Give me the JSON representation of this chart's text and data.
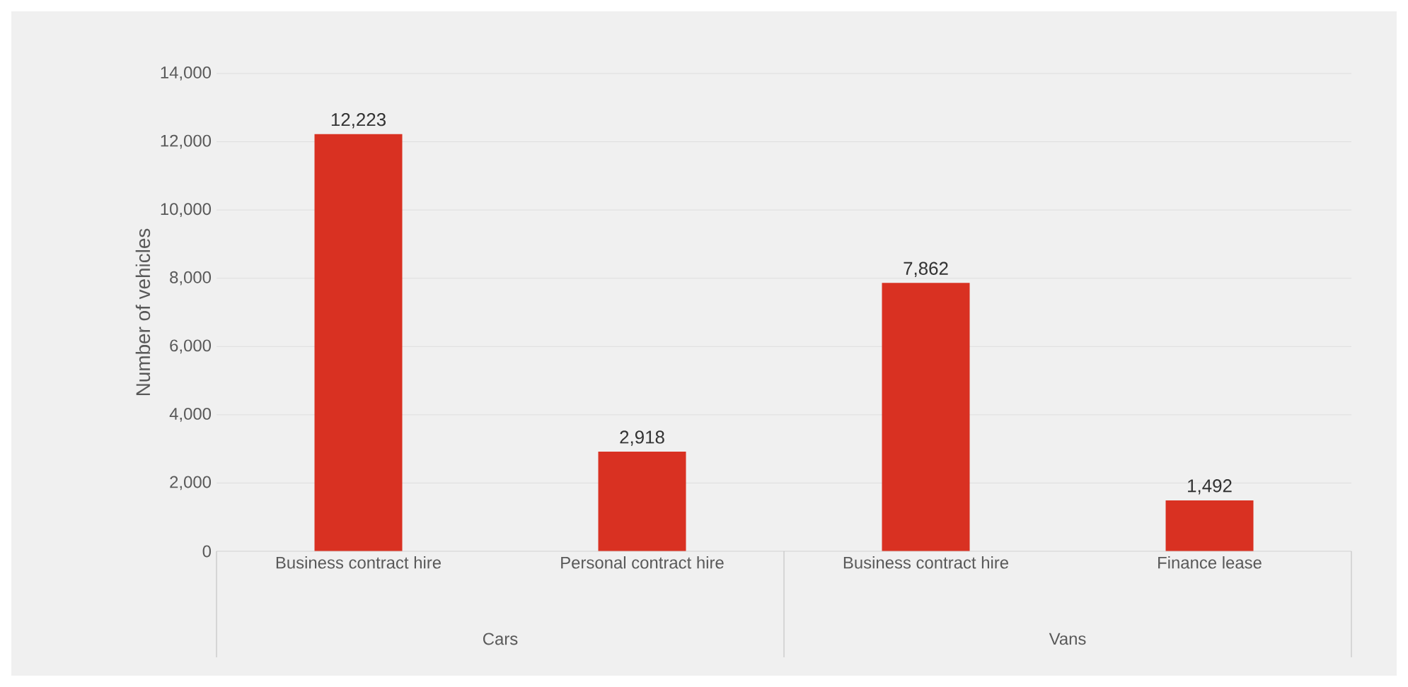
{
  "chart_data": {
    "type": "bar",
    "ylabel": "Number of vehicles",
    "categories": [
      "Business contract hire",
      "Personal contract hire",
      "Business contract hire",
      "Finance lease"
    ],
    "values": [
      12223,
      2918,
      7862,
      1492
    ],
    "color": "#d93122",
    "value_labels": [
      "12,223",
      "2,918",
      "7,862",
      "1,492"
    ],
    "annotations": [
      "Cars",
      "Vans"
    ],
    "ylim": [
      0,
      14000
    ],
    "yticks": [
      0,
      {
        "value": 2000,
        "label": "2,000"
      },
      {
        "value": 4000,
        "label": "4,000"
      },
      {
        "value": 6000,
        "label": "6,000"
      },
      {
        "value": 8000,
        "label": "8,000"
      },
      {
        "value": 10000,
        "label": "10,000"
      },
      {
        "value": 12000,
        "label": "12,000"
      },
      {
        "value": 14000,
        "label": "14,000"
      }
    ],
    "grid": "y"
  }
}
